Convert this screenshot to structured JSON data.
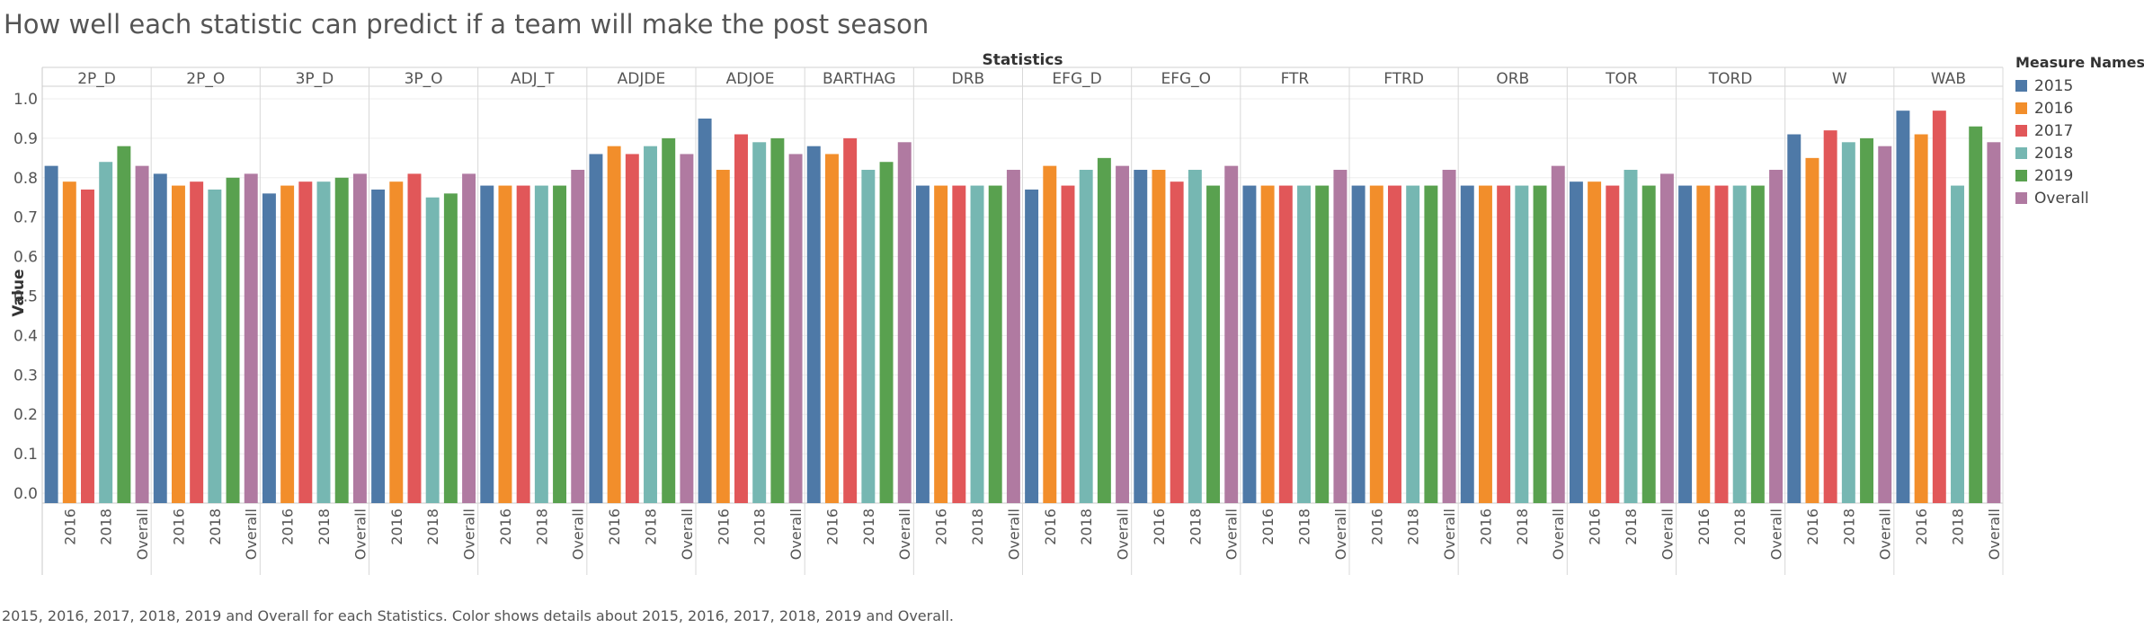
{
  "title": "How well each statistic can predict if a team will make the post season",
  "caption": "2015, 2016, 2017, 2018, 2019 and Overall for each Statistics.  Color shows details about 2015, 2016, 2017, 2018, 2019 and Overall.",
  "legend": {
    "title": "Measure Names",
    "items": [
      {
        "label": "2015",
        "color": "#4e79a7"
      },
      {
        "label": "2016",
        "color": "#f28e2b"
      },
      {
        "label": "2017",
        "color": "#e15759"
      },
      {
        "label": "2018",
        "color": "#76b7b2"
      },
      {
        "label": "2019",
        "color": "#59a14f"
      },
      {
        "label": "Overall",
        "color": "#b07aa1"
      }
    ]
  },
  "chart_data": {
    "type": "bar",
    "top_axis_title": "Statistics",
    "ylabel": "Value",
    "ylim": [
      0,
      1.0
    ],
    "y_ticks": [
      "1.0",
      "0.9",
      "0.8",
      "0.7",
      "0.6",
      "0.5",
      "0.4",
      "0.3",
      "0.2",
      "0.1",
      "0.0"
    ],
    "x_tick_labels": [
      "2016",
      "2018",
      "Overall"
    ],
    "gridlines": true,
    "legend_position": "right",
    "series": [
      {
        "name": "2015",
        "color": "#4e79a7"
      },
      {
        "name": "2016",
        "color": "#f28e2b"
      },
      {
        "name": "2017",
        "color": "#e15759"
      },
      {
        "name": "2018",
        "color": "#76b7b2"
      },
      {
        "name": "2019",
        "color": "#59a14f"
      },
      {
        "name": "Overall",
        "color": "#b07aa1"
      }
    ],
    "groups": [
      {
        "name": "2P_D",
        "values": [
          0.83,
          0.79,
          0.77,
          0.84,
          0.88,
          0.83
        ]
      },
      {
        "name": "2P_O",
        "values": [
          0.81,
          0.78,
          0.79,
          0.77,
          0.8,
          0.81
        ]
      },
      {
        "name": "3P_D",
        "values": [
          0.76,
          0.78,
          0.79,
          0.79,
          0.8,
          0.81
        ]
      },
      {
        "name": "3P_O",
        "values": [
          0.77,
          0.79,
          0.81,
          0.75,
          0.76,
          0.81
        ]
      },
      {
        "name": "ADJ_T",
        "values": [
          0.78,
          0.78,
          0.78,
          0.78,
          0.78,
          0.82
        ]
      },
      {
        "name": "ADJDE",
        "values": [
          0.86,
          0.88,
          0.86,
          0.88,
          0.9,
          0.86
        ]
      },
      {
        "name": "ADJOE",
        "values": [
          0.95,
          0.82,
          0.91,
          0.89,
          0.9,
          0.86
        ]
      },
      {
        "name": "BARTHAG",
        "values": [
          0.88,
          0.86,
          0.9,
          0.82,
          0.84,
          0.89
        ]
      },
      {
        "name": "DRB",
        "values": [
          0.78,
          0.78,
          0.78,
          0.78,
          0.78,
          0.82
        ]
      },
      {
        "name": "EFG_D",
        "values": [
          0.77,
          0.83,
          0.78,
          0.82,
          0.85,
          0.83
        ]
      },
      {
        "name": "EFG_O",
        "values": [
          0.82,
          0.82,
          0.79,
          0.82,
          0.78,
          0.83
        ]
      },
      {
        "name": "FTR",
        "values": [
          0.78,
          0.78,
          0.78,
          0.78,
          0.78,
          0.82
        ]
      },
      {
        "name": "FTRD",
        "values": [
          0.78,
          0.78,
          0.78,
          0.78,
          0.78,
          0.82
        ]
      },
      {
        "name": "ORB",
        "values": [
          0.78,
          0.78,
          0.78,
          0.78,
          0.78,
          0.83
        ]
      },
      {
        "name": "TOR",
        "values": [
          0.79,
          0.79,
          0.78,
          0.82,
          0.78,
          0.81
        ]
      },
      {
        "name": "TORD",
        "values": [
          0.78,
          0.78,
          0.78,
          0.78,
          0.78,
          0.82
        ]
      },
      {
        "name": "W",
        "values": [
          0.91,
          0.85,
          0.92,
          0.89,
          0.9,
          0.88
        ]
      },
      {
        "name": "WAB",
        "values": [
          0.97,
          0.91,
          0.97,
          0.78,
          0.93,
          0.89
        ]
      }
    ]
  }
}
